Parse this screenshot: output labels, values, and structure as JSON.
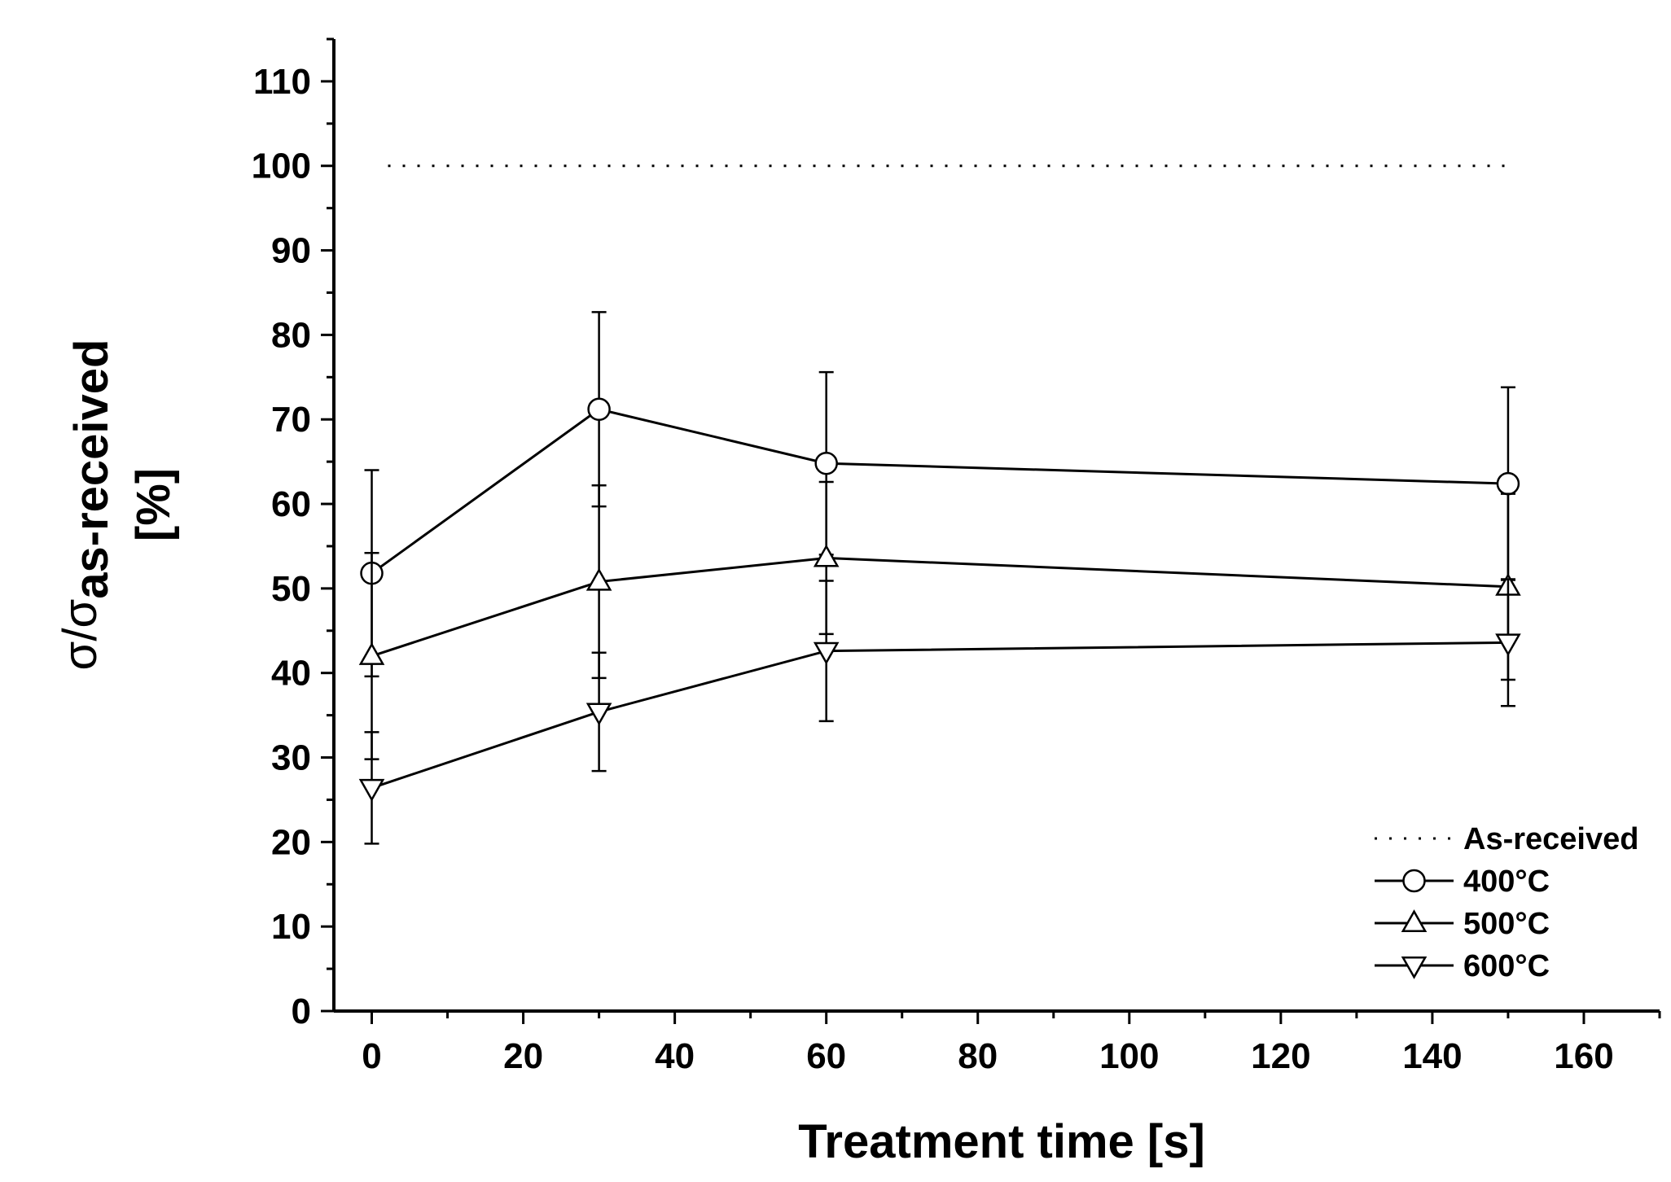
{
  "chart_data": {
    "type": "line",
    "title": "",
    "xlabel": "Treatment time [s]",
    "ylabel": {
      "prefix": "σ/σ",
      "subscript": "as-received",
      "unit": "[%]"
    },
    "xlim": [
      -5,
      170
    ],
    "ylim": [
      0,
      115
    ],
    "xticks": [
      0,
      20,
      40,
      60,
      80,
      100,
      120,
      140,
      160
    ],
    "yticks": [
      0,
      10,
      20,
      30,
      40,
      50,
      60,
      70,
      80,
      90,
      100,
      110
    ],
    "x_minor_step": 10,
    "y_minor_step": 5,
    "grid": false,
    "legend_position": "bottom-right",
    "reference_line": {
      "name": "As-received",
      "y": 100,
      "x_range": [
        0,
        150
      ],
      "style": "dotted"
    },
    "x": [
      0,
      30,
      60,
      150
    ],
    "series": [
      {
        "name": "400°C",
        "marker": "circle",
        "values": [
          51.8,
          71.2,
          64.8,
          62.4
        ],
        "errors": [
          12.2,
          11.5,
          10.8,
          11.4
        ]
      },
      {
        "name": "500°C",
        "marker": "triangle-up",
        "values": [
          42.0,
          50.8,
          53.6,
          50.2
        ],
        "errors": [
          12.2,
          11.4,
          9.0,
          11.0
        ]
      },
      {
        "name": "600°C",
        "marker": "triangle-down",
        "values": [
          26.4,
          35.4,
          42.6,
          43.6
        ],
        "errors": [
          6.6,
          7.0,
          8.3,
          7.5
        ]
      }
    ]
  }
}
